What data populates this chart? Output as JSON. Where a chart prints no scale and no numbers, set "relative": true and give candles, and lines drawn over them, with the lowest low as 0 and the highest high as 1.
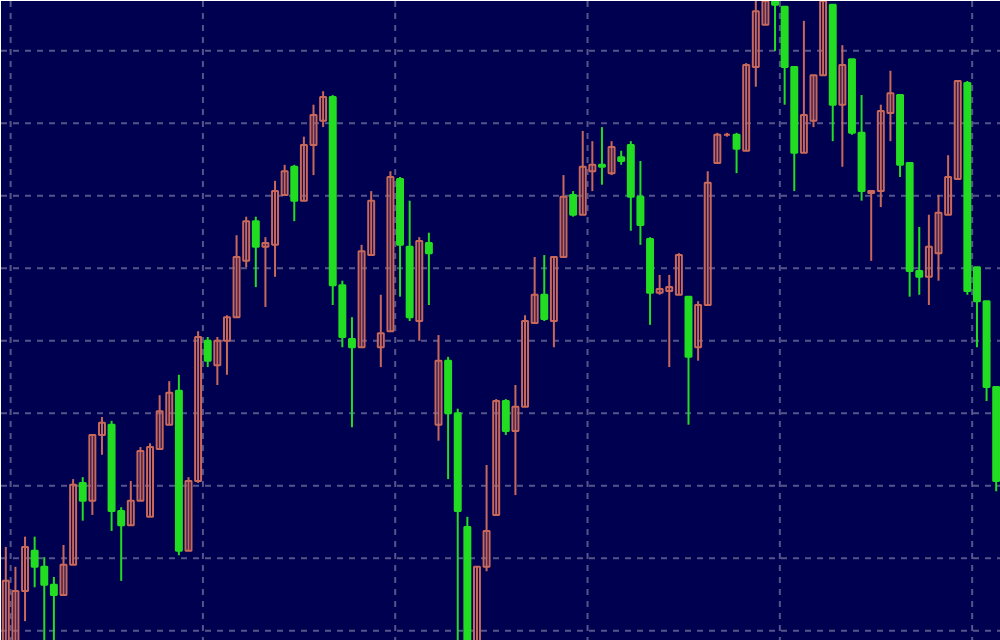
{
  "chart_data": {
    "type": "candlestick",
    "relative": true,
    "grid": true,
    "tick_labels": false,
    "categories": [
      null,
      null,
      null,
      null,
      null,
      null,
      null,
      null,
      null,
      null,
      null,
      null,
      null,
      null,
      null,
      null,
      null,
      null,
      null,
      null,
      null,
      null,
      null,
      null,
      null,
      null,
      null,
      null,
      null,
      null,
      null,
      null,
      null,
      null,
      null,
      null,
      null,
      null,
      null,
      null,
      null,
      null,
      null,
      null,
      null,
      null,
      null,
      null,
      null,
      null,
      null,
      null,
      null,
      null,
      null,
      null,
      null,
      null,
      null,
      null,
      null,
      null,
      null,
      null,
      null,
      null,
      null,
      null,
      null,
      null,
      null,
      null,
      null,
      null,
      null,
      null,
      null,
      null,
      null,
      null,
      null,
      null,
      null,
      null,
      null,
      null,
      null,
      null,
      null,
      null,
      null,
      null,
      null,
      null,
      null,
      null,
      null,
      null,
      null,
      null,
      null,
      null,
      null,
      null
    ],
    "colors": [
      "#c8685a",
      "#c8685a",
      "#c8685a",
      "#22dd22",
      "#22dd22",
      "#22dd22",
      "#c8685a",
      "#c8685a",
      "#22dd22",
      "#c8685a",
      "#c8685a",
      "#22dd22",
      "#22dd22",
      "#c8685a",
      "#c8685a",
      "#c8685a",
      "#c8685a",
      "#c8685a",
      "#22dd22",
      "#c8685a",
      "#c8685a",
      "#22dd22",
      "#c8685a",
      "#c8685a",
      "#c8685a",
      "#c8685a",
      "#22dd22",
      "#c8685a",
      "#c8685a",
      "#c8685a",
      "#22dd22",
      "#c8685a",
      "#c8685a",
      "#c8685a",
      "#22dd22",
      "#22dd22",
      "#22dd22",
      "#c8685a",
      "#c8685a",
      "#c8685a",
      "#c8685a",
      "#22dd22",
      "#22dd22",
      "#c8685a",
      "#22dd22",
      "#c8685a",
      "#22dd22",
      "#22dd22",
      "#22dd22",
      "#c8685a",
      "#c8685a",
      "#c8685a",
      "#22dd22",
      "#c8685a",
      "#c8685a",
      "#c8685a",
      "#22dd22",
      "#c8685a",
      "#c8685a",
      "#22dd22",
      "#c8685a",
      "#c8685a",
      "#22dd22",
      "#c8685a",
      "#22dd22",
      "#22dd22",
      "#22dd22",
      "#22dd22",
      "#c8685a",
      "#c8685a",
      "#c8685a",
      "#22dd22",
      "#c8685a",
      "#c8685a",
      "#c8685a",
      "#c8685a",
      "#22dd22",
      "#c8685a",
      "#c8685a",
      "#c8685a",
      "#22dd22",
      "#22dd22",
      "#22dd22",
      "#c8685a",
      "#c8685a",
      "#c8685a",
      "#22dd22",
      "#c8685a",
      "#22dd22",
      "#22dd22",
      "#c8685a",
      "#c8685a",
      "#c8685a",
      "#22dd22",
      "#22dd22",
      "#22dd22",
      "#c8685a",
      "#c8685a",
      "#c8685a",
      "#c8685a",
      "#22dd22",
      "#22dd22",
      "#22dd22",
      "#22dd22"
    ],
    "ohlc": [
      [
        0,
        0.147,
        0,
        0.094
      ],
      [
        0,
        0.116,
        0,
        0.078
      ],
      [
        0.078,
        0.163,
        0.031,
        0.147
      ],
      [
        0.141,
        0.163,
        0.084,
        0.116
      ],
      [
        0.116,
        0.131,
        0,
        0.088
      ],
      [
        0.088,
        0.1,
        0,
        0.072
      ],
      [
        0.072,
        0.15,
        0.072,
        0.119
      ],
      [
        0.119,
        0.253,
        0.119,
        0.244
      ],
      [
        0.247,
        0.256,
        0.188,
        0.219
      ],
      [
        0.219,
        0.322,
        0.197,
        0.322
      ],
      [
        0.322,
        0.35,
        0.291,
        0.341
      ],
      [
        0.338,
        0.344,
        0.172,
        0.203
      ],
      [
        0.203,
        0.209,
        0.094,
        0.181
      ],
      [
        0.181,
        0.25,
        0.181,
        0.219
      ],
      [
        0.219,
        0.303,
        0.219,
        0.297
      ],
      [
        0.194,
        0.309,
        0.194,
        0.303
      ],
      [
        0.3,
        0.384,
        0.3,
        0.359
      ],
      [
        0.338,
        0.406,
        0.338,
        0.388
      ],
      [
        0.391,
        0.416,
        0.134,
        0.141
      ],
      [
        0.141,
        0.256,
        0.141,
        0.25
      ],
      [
        0.25,
        0.484,
        0.247,
        0.475
      ],
      [
        0.469,
        0.475,
        0.428,
        0.438
      ],
      [
        0.431,
        0.475,
        0.4,
        0.469
      ],
      [
        0.469,
        0.509,
        0.416,
        0.506
      ],
      [
        0.506,
        0.634,
        0.506,
        0.6
      ],
      [
        0.594,
        0.663,
        0.584,
        0.656
      ],
      [
        0.656,
        0.663,
        0.553,
        0.616
      ],
      [
        0.616,
        0.631,
        0.522,
        0.622
      ],
      [
        0.619,
        0.719,
        0.569,
        0.703
      ],
      [
        0.697,
        0.744,
        0.697,
        0.734
      ],
      [
        0.741,
        0.744,
        0.656,
        0.688
      ],
      [
        0.688,
        0.788,
        0.688,
        0.775
      ],
      [
        0.775,
        0.838,
        0.728,
        0.822
      ],
      [
        0.813,
        0.859,
        0.803,
        0.85
      ],
      [
        0.85,
        0.853,
        0.525,
        0.556
      ],
      [
        0.556,
        0.563,
        0.459,
        0.475
      ],
      [
        0.472,
        0.506,
        0.334,
        0.459
      ],
      [
        0.459,
        0.619,
        0.459,
        0.609
      ],
      [
        0.603,
        0.703,
        0.603,
        0.688
      ],
      [
        0.459,
        0.541,
        0.428,
        0.481
      ],
      [
        0.484,
        0.734,
        0.484,
        0.725
      ],
      [
        0.722,
        0.725,
        0.538,
        0.619
      ],
      [
        0.616,
        0.688,
        0.5,
        0.506
      ],
      [
        0.5,
        0.631,
        0.469,
        0.625
      ],
      [
        0.622,
        0.638,
        0.525,
        0.606
      ],
      [
        0.338,
        0.478,
        0.313,
        0.438
      ],
      [
        0.438,
        0.444,
        0.253,
        0.356
      ],
      [
        0.356,
        0.363,
        0,
        0.203
      ],
      [
        0.178,
        0.194,
        0,
        0
      ],
      [
        0,
        0.116,
        0,
        0.116
      ],
      [
        0.116,
        0.275,
        0.109,
        0.172
      ],
      [
        0.197,
        0.378,
        0.197,
        0.375
      ],
      [
        0.375,
        0.378,
        0.322,
        0.328
      ],
      [
        0.328,
        0.4,
        0.228,
        0.366
      ],
      [
        0.366,
        0.509,
        0.366,
        0.5
      ],
      [
        0.497,
        0.6,
        0.497,
        0.541
      ],
      [
        0.541,
        0.603,
        0.5,
        0.503
      ],
      [
        0.5,
        0.6,
        0.459,
        0.6
      ],
      [
        0.6,
        0.728,
        0.6,
        0.694
      ],
      [
        0.697,
        0.703,
        0.663,
        0.666
      ],
      [
        0.666,
        0.797,
        0.666,
        0.741
      ],
      [
        0.734,
        0.781,
        0.703,
        0.744
      ],
      [
        0.744,
        0.803,
        0.713,
        0.741
      ],
      [
        0.731,
        0.781,
        0.728,
        0.772
      ],
      [
        0.756,
        0.766,
        0.744,
        0.75
      ],
      [
        0.775,
        0.781,
        0.641,
        0.694
      ],
      [
        0.694,
        0.75,
        0.619,
        0.65
      ],
      [
        0.628,
        0.631,
        0.494,
        0.544
      ],
      [
        0.544,
        0.572,
        0.541,
        0.55
      ],
      [
        0.547,
        0.572,
        0.428,
        0.553
      ],
      [
        0.541,
        0.606,
        0.541,
        0.603
      ],
      [
        0.538,
        0.538,
        0.338,
        0.444
      ],
      [
        0.459,
        0.531,
        0.438,
        0.525
      ],
      [
        0.525,
        0.734,
        0.525,
        0.716
      ],
      [
        0.747,
        0.794,
        0.747,
        0.791
      ],
      [
        0.791,
        0.794,
        0.788,
        0.791
      ],
      [
        0.791,
        0.794,
        0.731,
        0.769
      ],
      [
        0.766,
        0.903,
        0.766,
        0.9
      ],
      [
        0.897,
        1,
        0.866,
        0.984
      ],
      [
        0.963,
        1,
        0.963,
        1
      ],
      [
        1,
        1,
        0.922,
        0.994
      ],
      [
        0.991,
        0.991,
        0.838,
        0.897
      ],
      [
        0.897,
        0.897,
        0.703,
        0.763
      ],
      [
        0.763,
        0.969,
        0.763,
        0.822
      ],
      [
        0.813,
        0.884,
        0.803,
        0.884
      ],
      [
        0.884,
        1,
        0.884,
        1
      ],
      [
        0.994,
        0.994,
        0.781,
        0.838
      ],
      [
        0.838,
        0.931,
        0.741,
        0.9
      ],
      [
        0.909,
        0.909,
        0.791,
        0.794
      ],
      [
        0.794,
        0.853,
        0.688,
        0.703
      ],
      [
        0.7,
        0.703,
        0.594,
        0.703
      ],
      [
        0.703,
        0.838,
        0.678,
        0.828
      ],
      [
        0.825,
        0.891,
        0.781,
        0.856
      ],
      [
        0.853,
        0.853,
        0.725,
        0.744
      ],
      [
        0.747,
        0.747,
        0.538,
        0.578
      ],
      [
        0.578,
        0.647,
        0.541,
        0.569
      ],
      [
        0.569,
        0.666,
        0.525,
        0.616
      ],
      [
        0.606,
        0.697,
        0.563,
        0.669
      ],
      [
        0.666,
        0.759,
        0.666,
        0.725
      ],
      [
        0.722,
        0.875,
        0.722,
        0.875
      ],
      [
        0.872,
        0.875,
        0.541,
        0.547
      ],
      [
        0.584,
        0.584,
        0.459,
        0.531
      ],
      [
        0.531,
        0.531,
        0.375,
        0.397
      ],
      [
        0.397,
        0.397,
        0.234,
        0.25
      ]
    ]
  }
}
